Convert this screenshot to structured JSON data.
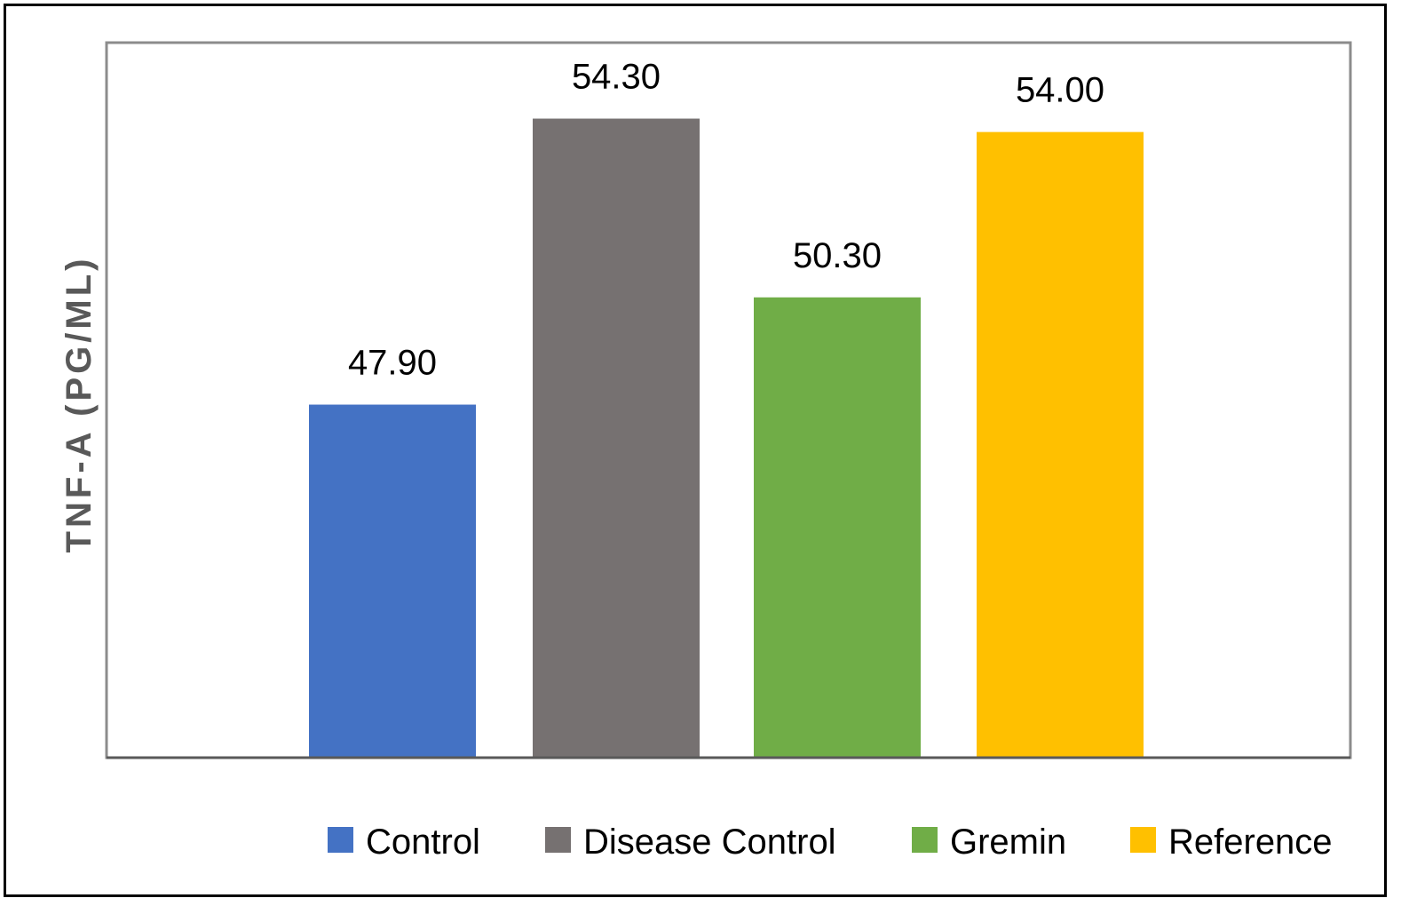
{
  "chart_data": {
    "type": "bar",
    "title": "",
    "xlabel": "",
    "ylabel": "TNF-A (PG/ML)",
    "ylim": [
      40,
      56
    ],
    "grid": false,
    "legend_position": "bottom",
    "series": [
      {
        "name": "Control",
        "value": 47.9,
        "label": "47.90",
        "color": "#4472C4"
      },
      {
        "name": "Disease Control",
        "value": 54.3,
        "label": "54.30",
        "color": "#767171"
      },
      {
        "name": "Gremin",
        "value": 50.3,
        "label": "50.30",
        "color": "#70AD47"
      },
      {
        "name": "Reference",
        "value": 54.0,
        "label": "54.00",
        "color": "#FFC000"
      }
    ]
  }
}
